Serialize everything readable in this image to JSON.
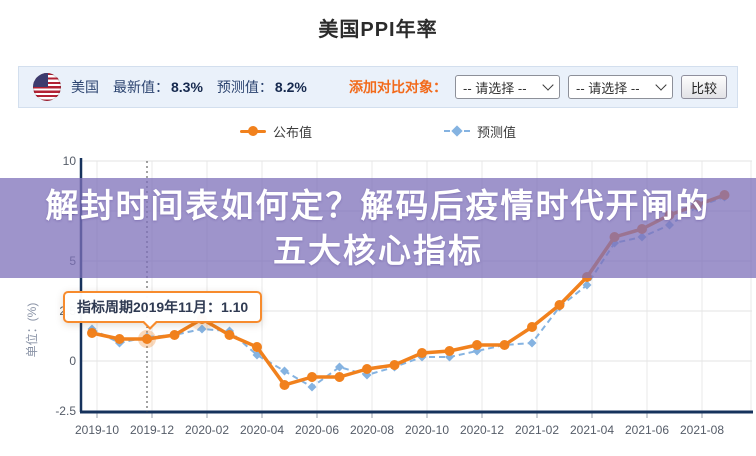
{
  "page_title": "美国PPI年率",
  "toolbar": {
    "flag_icon": "us-flag-icon",
    "country": "美国",
    "latest_label": "最新值：",
    "latest_value": "8.3%",
    "forecast_label": "预测值：",
    "forecast_value": "8.2%",
    "compare_label": "添加对比对象：",
    "select1_value": "-- 请选择 --",
    "select2_value": "-- 请选择 --",
    "compare_button": "比较"
  },
  "legend": {
    "published_label": "公布值",
    "forecast_label": "预测值"
  },
  "tooltip": {
    "text": "指标周期2019年11月：1.10"
  },
  "overlay_banner": {
    "line1": "解封时间表如何定？解码后疫情时代开闸的",
    "line2": "五大核心指标"
  },
  "colors": {
    "published": "#f1811d",
    "forecast": "#85b3e1",
    "axis": "#16325c",
    "grid": "#e3e3e3",
    "tick_text": "#555c68",
    "accent_orange": "#f26a1b",
    "banner_purple": "rgba(126,112,186,0.75)"
  },
  "chart_data": {
    "type": "line",
    "title": "美国PPI年率",
    "ylabel": "单位：(%)",
    "ylim": [
      -2.5,
      10
    ],
    "yticks": [
      10,
      7.5,
      5,
      2.5,
      0,
      -2.5
    ],
    "grid": true,
    "legend_position": "top",
    "x_labels": [
      "2019-10",
      "2019-12",
      "2020-02",
      "2020-04",
      "2020-06",
      "2020-08",
      "2020-10",
      "2020-12",
      "2021-02",
      "2021-04",
      "2021-06",
      "2021-08"
    ],
    "months": [
      "2019-09",
      "2019-10",
      "2019-11",
      "2019-12",
      "2020-01",
      "2020-02",
      "2020-03",
      "2020-04",
      "2020-05",
      "2020-06",
      "2020-07",
      "2020-08",
      "2020-09",
      "2020-10",
      "2020-11",
      "2020-12",
      "2021-01",
      "2021-02",
      "2021-03",
      "2021-04",
      "2021-05",
      "2021-06",
      "2021-07",
      "2021-08"
    ],
    "series": [
      {
        "name": "公布值",
        "marker": "circle",
        "values": [
          1.4,
          1.1,
          1.1,
          1.3,
          2.1,
          1.3,
          0.7,
          -1.2,
          -0.8,
          -0.8,
          -0.4,
          -0.2,
          0.4,
          0.5,
          0.8,
          0.8,
          1.7,
          2.8,
          4.2,
          6.2,
          6.6,
          7.3,
          7.8,
          8.3
        ]
      },
      {
        "name": "预测值",
        "marker": "diamond",
        "values": [
          1.6,
          0.9,
          1.2,
          1.3,
          1.6,
          1.5,
          0.3,
          -0.5,
          -1.3,
          -0.3,
          -0.7,
          -0.3,
          0.2,
          0.2,
          0.5,
          0.8,
          0.9,
          2.7,
          3.8,
          5.9,
          6.2,
          6.8,
          7.7,
          8.2
        ]
      }
    ],
    "highlight": {
      "month": "2019-11",
      "value": 1.1,
      "index": 2,
      "secondary_halo_index": 4
    }
  }
}
